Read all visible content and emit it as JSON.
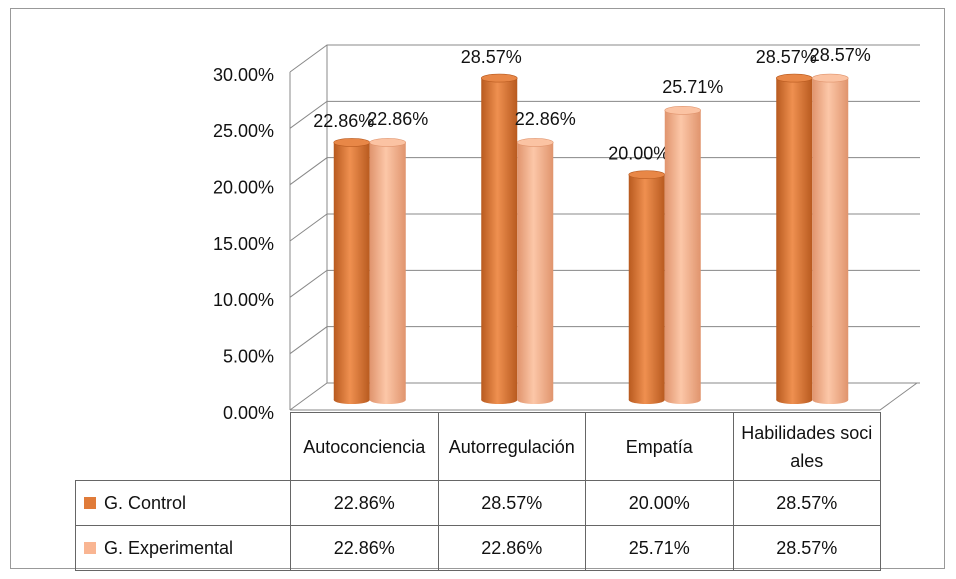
{
  "chart_data": {
    "type": "bar3d",
    "categories": [
      "Autoconciencia",
      "Autorregulación",
      "Empatía",
      "Habilidades sociales"
    ],
    "series": [
      {
        "name": "G. Control",
        "color": "#e07b39",
        "values": [
          22.86,
          28.57,
          20.0,
          28.57
        ],
        "value_labels": [
          "22.86%",
          "28.57%",
          "20.00%",
          "28.57%"
        ]
      },
      {
        "name": "G. Experimental",
        "color": "#f9b592",
        "values": [
          22.86,
          22.86,
          25.71,
          28.57
        ],
        "value_labels": [
          "22.86%",
          "22.86%",
          "25.71%",
          "28.57%"
        ]
      }
    ],
    "ylim": [
      0,
      30
    ],
    "yticks": [
      {
        "value": 0,
        "label": "0.00%"
      },
      {
        "value": 5,
        "label": "5.00%"
      },
      {
        "value": 10,
        "label": "10.00%"
      },
      {
        "value": 15,
        "label": "15.00%"
      },
      {
        "value": 20,
        "label": "20.00%"
      },
      {
        "value": 25,
        "label": "25.00%"
      },
      {
        "value": 30,
        "label": "30.00%"
      }
    ],
    "grid": true,
    "data_table": true
  }
}
